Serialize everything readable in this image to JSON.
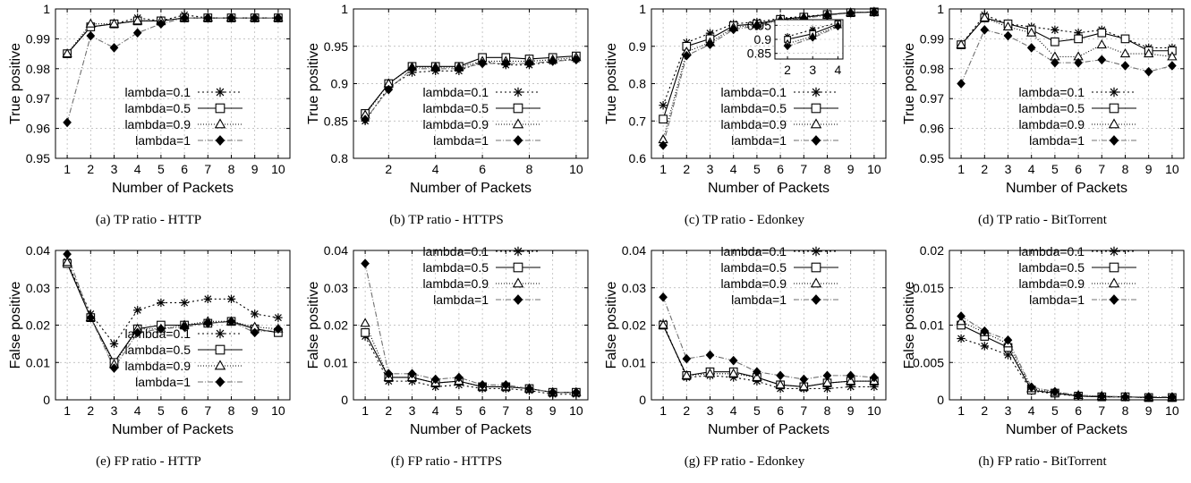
{
  "figure": {
    "panels": [
      {
        "caption": "(a) TP ratio - HTTP"
      },
      {
        "caption": "(b) TP ratio - HTTPS"
      },
      {
        "caption": "(c) TP ratio - Edonkey"
      },
      {
        "caption": "(d) TP ratio - BitTorrent"
      },
      {
        "caption": "(e) FP ratio - HTTP"
      },
      {
        "caption": "(f) FP ratio - HTTPS"
      },
      {
        "caption": "(g) FP ratio - Edonkey"
      },
      {
        "caption": "(h) FP ratio - BitTorrent"
      }
    ]
  },
  "chart_data": [
    {
      "type": "line",
      "title": "",
      "xlabel": "Number of Packets",
      "ylabel": "True positive",
      "x": [
        1,
        2,
        3,
        4,
        5,
        6,
        7,
        8,
        9,
        10
      ],
      "xlim": [
        0.5,
        10.5
      ],
      "ylim": [
        0.95,
        1
      ],
      "yticks": [
        "0.95",
        "0.96",
        "0.97",
        "0.98",
        "0.99",
        "1"
      ],
      "grid": "dashed",
      "legend": "lower-right",
      "series": [
        {
          "name": "lambda=0.1",
          "marker": "asterisk",
          "values": [
            0.985,
            0.994,
            0.995,
            0.997,
            0.996,
            0.998,
            0.997,
            0.997,
            0.997,
            0.997
          ]
        },
        {
          "name": "lambda=0.5",
          "marker": "square",
          "values": [
            0.985,
            0.994,
            0.995,
            0.996,
            0.996,
            0.997,
            0.997,
            0.997,
            0.997,
            0.997
          ]
        },
        {
          "name": "lambda=0.9",
          "marker": "triangle",
          "values": [
            0.985,
            0.995,
            0.995,
            0.996,
            0.996,
            0.997,
            0.997,
            0.997,
            0.997,
            0.997
          ]
        },
        {
          "name": "lambda=1",
          "marker": "diamond",
          "values": [
            0.962,
            0.991,
            0.987,
            0.992,
            0.995,
            0.997,
            0.997,
            0.997,
            0.997,
            0.997
          ]
        }
      ]
    },
    {
      "type": "line",
      "title": "",
      "xlabel": "Number of Packets",
      "ylabel": "True positive",
      "x": [
        1,
        2,
        3,
        4,
        5,
        6,
        7,
        8,
        9,
        10
      ],
      "xlim": [
        0.5,
        10.5
      ],
      "ylim": [
        0.8,
        1
      ],
      "yticks": [
        "0.8",
        "0.85",
        "0.9",
        "0.95",
        "1"
      ],
      "xticks": [
        "2",
        "4",
        "6",
        "8",
        "10"
      ],
      "grid": "dashed",
      "legend": "lower-right",
      "series": [
        {
          "name": "lambda=0.1",
          "marker": "asterisk",
          "values": [
            0.85,
            0.895,
            0.915,
            0.917,
            0.917,
            0.93,
            0.925,
            0.925,
            0.93,
            0.933
          ]
        },
        {
          "name": "lambda=0.5",
          "marker": "square",
          "values": [
            0.86,
            0.9,
            0.923,
            0.923,
            0.923,
            0.935,
            0.935,
            0.933,
            0.935,
            0.937
          ]
        },
        {
          "name": "lambda=0.9",
          "marker": "triangle",
          "values": [
            0.858,
            0.9,
            0.922,
            0.922,
            0.922,
            0.93,
            0.93,
            0.93,
            0.932,
            0.935
          ]
        },
        {
          "name": "lambda=1",
          "marker": "diamond",
          "values": [
            0.852,
            0.892,
            0.92,
            0.92,
            0.92,
            0.927,
            0.927,
            0.927,
            0.93,
            0.932
          ]
        }
      ]
    },
    {
      "type": "line",
      "title": "",
      "xlabel": "Number of Packets",
      "ylabel": "True positive",
      "x": [
        1,
        2,
        3,
        4,
        5,
        6,
        7,
        8,
        9,
        10
      ],
      "xlim": [
        0.5,
        10.5
      ],
      "ylim": [
        0.6,
        1
      ],
      "yticks": [
        "0.6",
        "0.7",
        "0.8",
        "0.9",
        "1"
      ],
      "grid": "dashed",
      "legend": "lower-right",
      "series": [
        {
          "name": "lambda=0.1",
          "marker": "asterisk",
          "values": [
            0.742,
            0.91,
            0.935,
            0.96,
            0.965,
            0.975,
            0.98,
            0.985,
            0.99,
            0.992
          ]
        },
        {
          "name": "lambda=0.5",
          "marker": "square",
          "values": [
            0.705,
            0.9,
            0.92,
            0.955,
            0.96,
            0.972,
            0.978,
            0.985,
            0.99,
            0.992
          ]
        },
        {
          "name": "lambda=0.9",
          "marker": "triangle",
          "values": [
            0.65,
            0.885,
            0.91,
            0.95,
            0.958,
            0.97,
            0.977,
            0.984,
            0.99,
            0.992
          ]
        },
        {
          "name": "lambda=1",
          "marker": "diamond",
          "values": [
            0.635,
            0.875,
            0.905,
            0.945,
            0.955,
            0.968,
            0.975,
            0.983,
            0.989,
            0.991
          ]
        }
      ],
      "inset": {
        "x": [
          2,
          3,
          4
        ],
        "xlim": [
          1.5,
          4.2
        ],
        "ylim": [
          0.83,
          0.97
        ],
        "xticks": [
          "2",
          "3",
          "4"
        ],
        "yticks": [
          "0.85",
          "0.9",
          "0.95"
        ],
        "series": [
          {
            "name": "lambda=0.1",
            "marker": "asterisk",
            "values": [
              0.91,
              0.935,
              0.96
            ]
          },
          {
            "name": "lambda=0.5",
            "marker": "square",
            "values": [
              0.9,
              0.92,
              0.955
            ]
          },
          {
            "name": "lambda=0.9",
            "marker": "triangle",
            "values": [
              0.885,
              0.91,
              0.95
            ]
          },
          {
            "name": "lambda=1",
            "marker": "diamond",
            "values": [
              0.875,
              0.905,
              0.945
            ]
          }
        ]
      }
    },
    {
      "type": "line",
      "title": "",
      "xlabel": "Number of Packets",
      "ylabel": "True positive",
      "x": [
        1,
        2,
        3,
        4,
        5,
        6,
        7,
        8,
        9,
        10
      ],
      "xlim": [
        0.5,
        10.5
      ],
      "ylim": [
        0.95,
        1
      ],
      "yticks": [
        "0.95",
        "0.96",
        "0.97",
        "0.98",
        "0.99",
        "1"
      ],
      "grid": "dashed",
      "legend": "lower-right",
      "series": [
        {
          "name": "lambda=0.1",
          "marker": "asterisk",
          "values": [
            0.988,
            0.998,
            0.995,
            0.994,
            0.993,
            0.992,
            0.993,
            0.99,
            0.987,
            0.987
          ]
        },
        {
          "name": "lambda=0.5",
          "marker": "square",
          "values": [
            0.988,
            0.997,
            0.995,
            0.993,
            0.989,
            0.99,
            0.992,
            0.99,
            0.986,
            0.986
          ]
        },
        {
          "name": "lambda=0.9",
          "marker": "triangle",
          "values": [
            0.988,
            0.997,
            0.994,
            0.992,
            0.984,
            0.984,
            0.988,
            0.985,
            0.985,
            0.984
          ]
        },
        {
          "name": "lambda=1",
          "marker": "diamond",
          "values": [
            0.975,
            0.993,
            0.991,
            0.987,
            0.982,
            0.982,
            0.983,
            0.981,
            0.979,
            0.981
          ]
        }
      ]
    },
    {
      "type": "line",
      "title": "",
      "xlabel": "Number of Packets",
      "ylabel": "False positive",
      "x": [
        1,
        2,
        3,
        4,
        5,
        6,
        7,
        8,
        9,
        10
      ],
      "xlim": [
        0.5,
        10.5
      ],
      "ylim": [
        0,
        0.04
      ],
      "yticks": [
        "0",
        "0.01",
        "0.02",
        "0.03",
        "0.04"
      ],
      "grid": "dashed",
      "legend": "lower-right",
      "series": [
        {
          "name": "lambda=0.1",
          "marker": "asterisk",
          "values": [
            0.037,
            0.023,
            0.015,
            0.024,
            0.026,
            0.026,
            0.027,
            0.027,
            0.023,
            0.022
          ]
        },
        {
          "name": "lambda=0.5",
          "marker": "square",
          "values": [
            0.0365,
            0.022,
            0.01,
            0.019,
            0.02,
            0.02,
            0.0205,
            0.021,
            0.019,
            0.018
          ]
        },
        {
          "name": "lambda=0.9",
          "marker": "triangle",
          "values": [
            0.0368,
            0.022,
            0.0095,
            0.019,
            0.019,
            0.02,
            0.021,
            0.021,
            0.0195,
            0.019
          ]
        },
        {
          "name": "lambda=1",
          "marker": "diamond",
          "values": [
            0.039,
            0.022,
            0.0085,
            0.018,
            0.019,
            0.0195,
            0.0205,
            0.021,
            0.018,
            0.019
          ]
        }
      ]
    },
    {
      "type": "line",
      "title": "",
      "xlabel": "Number of Packets",
      "ylabel": "False positive",
      "x": [
        1,
        2,
        3,
        4,
        5,
        6,
        7,
        8,
        9,
        10
      ],
      "xlim": [
        0.5,
        10.5
      ],
      "ylim": [
        0,
        0.04
      ],
      "yticks": [
        "0",
        "0.01",
        "0.02",
        "0.03",
        "0.04"
      ],
      "grid": "dashed",
      "legend": "top-right",
      "series": [
        {
          "name": "lambda=0.1",
          "marker": "asterisk",
          "values": [
            0.017,
            0.005,
            0.005,
            0.0035,
            0.004,
            0.003,
            0.003,
            0.0025,
            0.0015,
            0.0015
          ]
        },
        {
          "name": "lambda=0.5",
          "marker": "square",
          "values": [
            0.018,
            0.006,
            0.006,
            0.0045,
            0.005,
            0.0035,
            0.0035,
            0.003,
            0.002,
            0.002
          ]
        },
        {
          "name": "lambda=0.9",
          "marker": "triangle",
          "values": [
            0.0205,
            0.006,
            0.006,
            0.0045,
            0.005,
            0.0035,
            0.0035,
            0.003,
            0.002,
            0.002
          ]
        },
        {
          "name": "lambda=1",
          "marker": "diamond",
          "values": [
            0.0365,
            0.007,
            0.007,
            0.0055,
            0.006,
            0.004,
            0.004,
            0.003,
            0.002,
            0.002
          ]
        }
      ]
    },
    {
      "type": "line",
      "title": "",
      "xlabel": "Number of Packets",
      "ylabel": "False positive",
      "x": [
        1,
        2,
        3,
        4,
        5,
        6,
        7,
        8,
        9,
        10
      ],
      "xlim": [
        0.5,
        10.5
      ],
      "ylim": [
        0,
        0.04
      ],
      "yticks": [
        "0",
        "0.01",
        "0.02",
        "0.03",
        "0.04"
      ],
      "grid": "dashed",
      "legend": "top-right",
      "series": [
        {
          "name": "lambda=0.1",
          "marker": "asterisk",
          "values": [
            0.0205,
            0.006,
            0.0065,
            0.006,
            0.005,
            0.003,
            0.003,
            0.003,
            0.0035,
            0.0035
          ]
        },
        {
          "name": "lambda=0.5",
          "marker": "square",
          "values": [
            0.02,
            0.0065,
            0.0075,
            0.0075,
            0.006,
            0.004,
            0.0035,
            0.0045,
            0.005,
            0.005
          ]
        },
        {
          "name": "lambda=0.9",
          "marker": "triangle",
          "values": [
            0.02,
            0.0065,
            0.007,
            0.007,
            0.006,
            0.004,
            0.0035,
            0.0045,
            0.005,
            0.005
          ]
        },
        {
          "name": "lambda=1",
          "marker": "diamond",
          "values": [
            0.0275,
            0.011,
            0.012,
            0.0105,
            0.0075,
            0.0065,
            0.0055,
            0.0065,
            0.0065,
            0.006
          ]
        }
      ]
    },
    {
      "type": "line",
      "title": "",
      "xlabel": "Number of Packets",
      "ylabel": "False positive",
      "x": [
        1,
        2,
        3,
        4,
        5,
        6,
        7,
        8,
        9,
        10
      ],
      "xlim": [
        0.5,
        10.5
      ],
      "ylim": [
        0,
        0.02
      ],
      "yticks": [
        "0",
        "0.005",
        "0.01",
        "0.015",
        "0.02"
      ],
      "grid": "dashed",
      "legend": "top-right",
      "series": [
        {
          "name": "lambda=0.1",
          "marker": "asterisk",
          "values": [
            0.0082,
            0.0072,
            0.006,
            0.0012,
            0.0008,
            0.0005,
            0.0004,
            0.0004,
            0.0003,
            0.0003
          ]
        },
        {
          "name": "lambda=0.5",
          "marker": "square",
          "values": [
            0.01,
            0.0085,
            0.007,
            0.0013,
            0.0009,
            0.0005,
            0.0004,
            0.0004,
            0.0003,
            0.0003
          ]
        },
        {
          "name": "lambda=0.9",
          "marker": "triangle",
          "values": [
            0.0105,
            0.009,
            0.0075,
            0.0015,
            0.001,
            0.0006,
            0.0005,
            0.0004,
            0.0003,
            0.0003
          ]
        },
        {
          "name": "lambda=1",
          "marker": "diamond",
          "values": [
            0.0112,
            0.0092,
            0.008,
            0.0017,
            0.0011,
            0.0006,
            0.0005,
            0.0004,
            0.0004,
            0.0004
          ]
        }
      ]
    }
  ]
}
